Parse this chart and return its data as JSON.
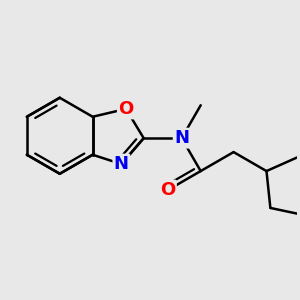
{
  "background_color": "#e8e8e8",
  "bond_color": "#000000",
  "bond_width": 1.8,
  "atom_colors": {
    "O": "#ff0000",
    "N": "#0000ee",
    "C": "#000000"
  },
  "font_size_atom": 13,
  "figsize": [
    3.0,
    3.0
  ],
  "dpi": 100
}
